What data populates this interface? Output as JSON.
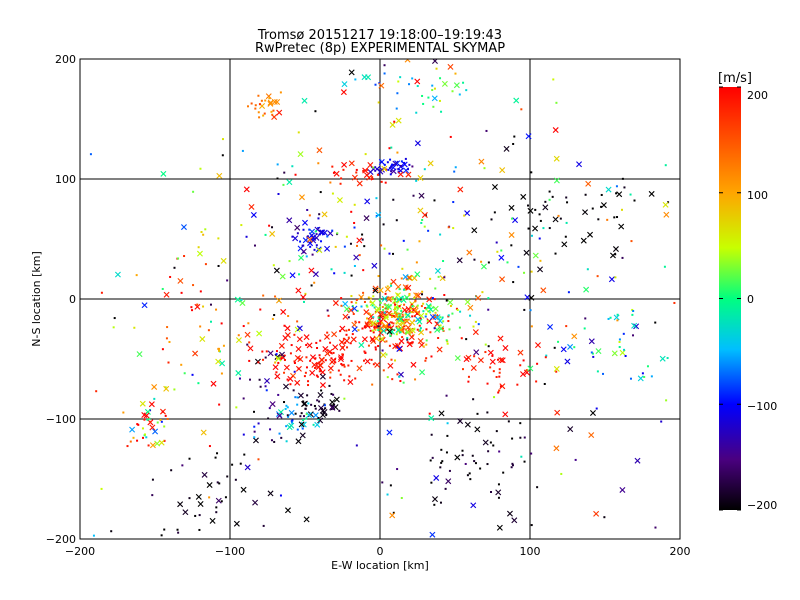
{
  "chart_data": {
    "type": "scatter",
    "title": "Tromsø 20151217 19:18:00–19:19:43",
    "subtitle": "RwPretec (8p) EXPERIMENTAL SKYMAP",
    "xlabel": "E-W location [km]",
    "ylabel": "N-S location [km]",
    "xlim": [
      -200,
      200
    ],
    "ylim": [
      -200,
      200
    ],
    "xticks": [
      "−200",
      "−100",
      "0",
      "100",
      "200"
    ],
    "yticks": [
      "−200",
      "−100",
      "0",
      "100",
      "200"
    ],
    "grid_lines": [
      -100,
      0,
      100
    ],
    "colorbar": {
      "unit": "[m/s]",
      "min": -200,
      "max": 200,
      "ticks": [
        "200",
        "100",
        "0",
        "−100",
        "−200"
      ],
      "colormap": [
        "#000000",
        "#4a0080",
        "#0000ff",
        "#00bfff",
        "#00ff80",
        "#c8ff00",
        "#ffa500",
        "#ff0000"
      ]
    },
    "clusters": [
      {
        "cx": 5,
        "cy": -25,
        "sx": 20,
        "sy": 15,
        "n": 170,
        "v": 185,
        "vs": 20
      },
      {
        "cx": 10,
        "cy": -10,
        "sx": 15,
        "sy": 15,
        "n": 120,
        "v": 90,
        "vs": 50
      },
      {
        "cx": 20,
        "cy": -15,
        "sx": 20,
        "sy": 12,
        "n": 90,
        "v": 10,
        "vs": 40
      },
      {
        "cx": -40,
        "cy": -50,
        "sx": 18,
        "sy": 10,
        "n": 110,
        "v": 190,
        "vs": 15
      },
      {
        "cx": -40,
        "cy": -88,
        "sx": 8,
        "sy": 7,
        "n": 45,
        "v": -190,
        "vs": 10
      },
      {
        "cx": -55,
        "cy": -100,
        "sx": 8,
        "sy": 8,
        "n": 30,
        "v": -40,
        "vs": 30
      },
      {
        "cx": -75,
        "cy": -85,
        "sx": 12,
        "sy": 25,
        "n": 35,
        "v": -150,
        "vs": 40
      },
      {
        "cx": 10,
        "cy": 110,
        "sx": 8,
        "sy": 4,
        "n": 35,
        "v": -110,
        "vs": 15
      },
      {
        "cx": -10,
        "cy": 105,
        "sx": 12,
        "sy": 5,
        "n": 25,
        "v": 190,
        "vs": 10
      },
      {
        "cx": -45,
        "cy": 50,
        "sx": 8,
        "sy": 8,
        "n": 45,
        "v": -110,
        "vs": 20
      },
      {
        "cx": -75,
        "cy": 162,
        "sx": 6,
        "sy": 6,
        "n": 25,
        "v": 120,
        "vs": 20
      },
      {
        "cx": 30,
        "cy": 175,
        "sx": 25,
        "sy": 12,
        "n": 35,
        "v": 10,
        "vs": 50
      },
      {
        "cx": -155,
        "cy": -105,
        "sx": 8,
        "sy": 10,
        "n": 40,
        "v": 100,
        "vs": 120
      },
      {
        "cx": 140,
        "cy": 70,
        "sx": 30,
        "sy": 25,
        "n": 50,
        "v": -200,
        "vs": 5
      },
      {
        "cx": 160,
        "cy": -40,
        "sx": 25,
        "sy": 15,
        "n": 40,
        "v": -40,
        "vs": 60
      },
      {
        "cx": 70,
        "cy": -140,
        "sx": 30,
        "sy": 30,
        "n": 70,
        "v": -190,
        "vs": 20
      },
      {
        "cx": -110,
        "cy": -160,
        "sx": 25,
        "sy": 25,
        "n": 45,
        "v": -195,
        "vs": 15
      },
      {
        "cx": 80,
        "cy": -60,
        "sx": 15,
        "sy": 12,
        "n": 40,
        "v": 190,
        "vs": 15
      },
      {
        "cx": 0,
        "cy": 40,
        "sx": 80,
        "sy": 50,
        "n": 200,
        "v": 0,
        "vs": 150
      },
      {
        "cx": -100,
        "cy": -20,
        "sx": 30,
        "sy": 30,
        "n": 60,
        "v": 140,
        "vs": 80
      },
      {
        "cx": 0,
        "cy": 0,
        "sx": 120,
        "sy": 120,
        "n": 200,
        "v": 0,
        "vs": 150
      }
    ]
  }
}
